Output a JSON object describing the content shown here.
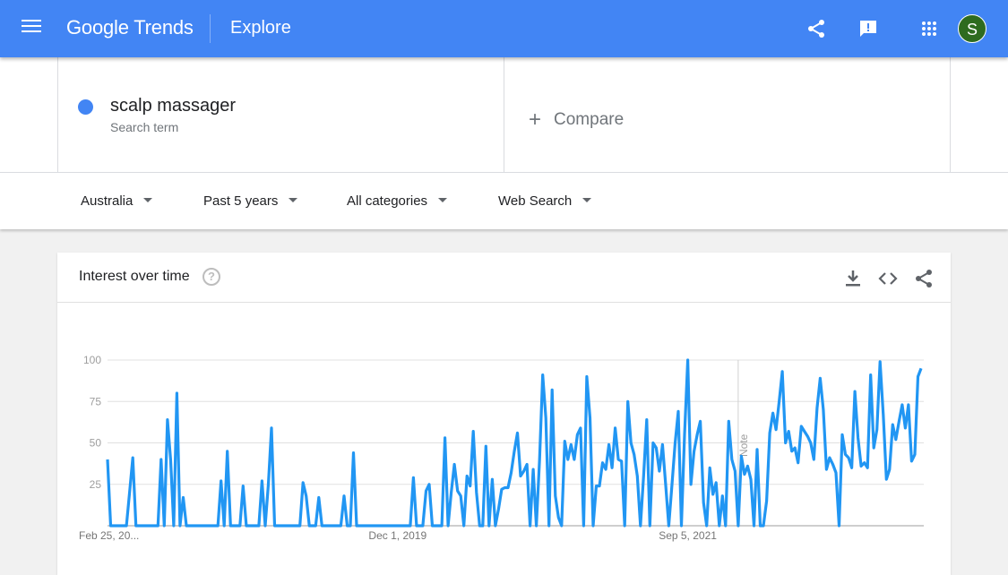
{
  "header": {
    "logo": "Google Trends",
    "section": "Explore",
    "avatar_letter": "S",
    "brand_color": "#4285f4",
    "icons": [
      "menu-icon",
      "share-icon",
      "feedback-icon",
      "apps-icon"
    ]
  },
  "search": {
    "term": "scalp massager",
    "term_type": "Search term",
    "term_color": "#4285f4",
    "compare_label": "Compare"
  },
  "filters": [
    {
      "label": "Australia"
    },
    {
      "label": "Past 5 years"
    },
    {
      "label": "All categories"
    },
    {
      "label": "Web Search"
    }
  ],
  "card": {
    "title": "Interest over time",
    "icons": [
      "help-icon",
      "download-icon",
      "embed-icon",
      "share-icon"
    ]
  },
  "chart_data": {
    "type": "line",
    "title": "",
    "xlabel": "",
    "ylabel": "",
    "ylim": [
      0,
      100
    ],
    "y_ticks": [
      25,
      50,
      75,
      100
    ],
    "x_ticks": [
      {
        "label": "Feb 25, 20...",
        "index": 0
      },
      {
        "label": "Dec 1, 2019",
        "index": 92
      },
      {
        "label": "Sep 5, 2021",
        "index": 184
      }
    ],
    "note": {
      "label": "Note",
      "index": 200
    },
    "grid": true,
    "series_color": "#2196f3",
    "series": [
      {
        "values": [
          40,
          0,
          0,
          0,
          0,
          0,
          0,
          20,
          41,
          0,
          0,
          0,
          0,
          0,
          0,
          0,
          0,
          40,
          0,
          64,
          40,
          0,
          80,
          0,
          17,
          0,
          0,
          0,
          0,
          0,
          0,
          0,
          0,
          0,
          0,
          0,
          27,
          0,
          45,
          0,
          0,
          0,
          0,
          24,
          0,
          0,
          0,
          0,
          0,
          27,
          0,
          25,
          59,
          0,
          0,
          0,
          0,
          0,
          0,
          0,
          0,
          0,
          26,
          18,
          0,
          0,
          0,
          17,
          0,
          0,
          0,
          0,
          0,
          0,
          0,
          18,
          0,
          0,
          44,
          0,
          0,
          0,
          0,
          0,
          0,
          0,
          0,
          0,
          0,
          0,
          0,
          0,
          0,
          0,
          0,
          0,
          0,
          29,
          0,
          0,
          0,
          21,
          25,
          0,
          0,
          0,
          0,
          53,
          0,
          20,
          37,
          21,
          18,
          0,
          30,
          24,
          57,
          20,
          0,
          0,
          48,
          0,
          28,
          0,
          10,
          22,
          23,
          23,
          32,
          45,
          56,
          30,
          33,
          37,
          0,
          34,
          0,
          40,
          91,
          65,
          0,
          82,
          18,
          5,
          0,
          51,
          40,
          49,
          40,
          55,
          59,
          0,
          90,
          65,
          0,
          24,
          24,
          38,
          34,
          49,
          35,
          59,
          40,
          39,
          0,
          75,
          50,
          43,
          30,
          0,
          30,
          64,
          0,
          50,
          47,
          33,
          49,
          25,
          0,
          25,
          50,
          69,
          0,
          55,
          100,
          25,
          45,
          55,
          63,
          14,
          0,
          35,
          19,
          26,
          0,
          18,
          0,
          63,
          40,
          33,
          0,
          42,
          31,
          36,
          28,
          0,
          46,
          0,
          0,
          15,
          56,
          68,
          58,
          75,
          93,
          50,
          57,
          45,
          47,
          38,
          60,
          57,
          54,
          50,
          40,
          71,
          89,
          70,
          34,
          41,
          37,
          32,
          0,
          55,
          43,
          41,
          35,
          81,
          53,
          36,
          38,
          35,
          91,
          47,
          58,
          99,
          67,
          28,
          34,
          61,
          52,
          63,
          73,
          59,
          73,
          39,
          43,
          90,
          95
        ]
      }
    ]
  }
}
